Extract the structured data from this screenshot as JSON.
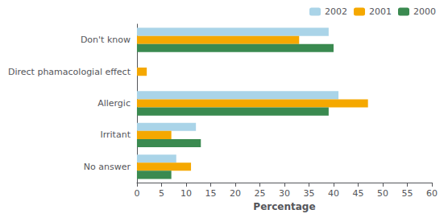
{
  "chart_data": {
    "type": "bar",
    "orientation": "horizontal",
    "categories": [
      "No answer",
      "Irritant",
      "Allergic",
      "Direct phamacologial effect",
      "Don't know"
    ],
    "series": [
      {
        "name": "2002",
        "color": "#aad4e8",
        "values": [
          8,
          12,
          41,
          0,
          39
        ]
      },
      {
        "name": "2001",
        "color": "#f5a800",
        "values": [
          11,
          7,
          47,
          2,
          33
        ]
      },
      {
        "name": "2000",
        "color": "#3a8a50",
        "values": [
          7,
          13,
          39,
          0,
          40
        ]
      }
    ],
    "xlabel": "Percentage",
    "xlim": [
      0,
      60
    ],
    "xticks": [
      0,
      5,
      10,
      15,
      20,
      25,
      30,
      35,
      40,
      45,
      50,
      55,
      60
    ],
    "legend": "upper right",
    "grid": false
  }
}
